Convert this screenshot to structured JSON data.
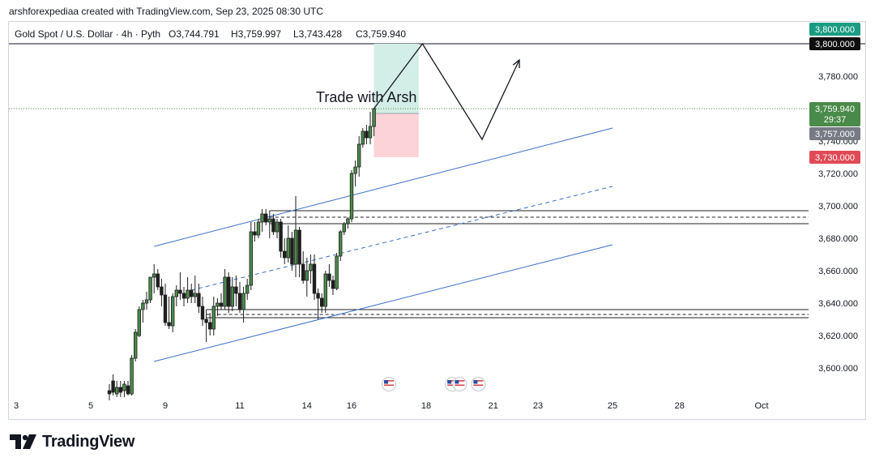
{
  "caption": "arshforexpediaa created with TradingView.com, Sep 23, 2025 08:30 UTC",
  "brand": "TradingView",
  "chart_data": {
    "type": "candlestick",
    "title": "Gold Spot / U.S. Dollar · 4h · Pyth",
    "ohlc": {
      "open": "O3,744.791",
      "high": "H3,759.997",
      "low": "L3,743.428",
      "close": "C3,759.940"
    },
    "annotation": "Trade with Arsh",
    "ylim": [
      3584,
      3818
    ],
    "y_ticks": [
      3600,
      3620,
      3640,
      3660,
      3680,
      3700,
      3720,
      3740,
      3760,
      3780,
      3800
    ],
    "y_tick_labels": [
      "3,600.000",
      "3,620.000",
      "3,640.000",
      "3,660.000",
      "3,680.000",
      "3,700.000",
      "3,720.000",
      "3,740.000",
      "3,760.000",
      "3,780.000",
      "3,800.000"
    ],
    "x_ticks": [
      {
        "label": "3",
        "t": 0
      },
      {
        "label": "5",
        "t": 20
      },
      {
        "label": "9",
        "t": 40
      },
      {
        "label": "11",
        "t": 60
      },
      {
        "label": "14",
        "t": 78
      },
      {
        "label": "16",
        "t": 90
      },
      {
        "label": "18",
        "t": 110
      },
      {
        "label": "21",
        "t": 128
      },
      {
        "label": "23",
        "t": 140
      },
      {
        "label": "25",
        "t": 160
      },
      {
        "label": "28",
        "t": 178
      },
      {
        "label": "Oct",
        "t": 200
      }
    ],
    "candles": [
      [
        25,
        3586,
        3590,
        3580,
        3584
      ],
      [
        26,
        3592,
        3596,
        3583,
        3585
      ],
      [
        27,
        3584,
        3592,
        3582,
        3588
      ],
      [
        28,
        3588,
        3592,
        3582,
        3585
      ],
      [
        29,
        3586,
        3592,
        3582,
        3590
      ],
      [
        30,
        3589,
        3592,
        3583,
        3584
      ],
      [
        31,
        3584,
        3608,
        3583,
        3606
      ],
      [
        32,
        3606,
        3624,
        3604,
        3622
      ],
      [
        33,
        3620,
        3638,
        3619,
        3636
      ],
      [
        34,
        3636,
        3642,
        3628,
        3640
      ],
      [
        35,
        3640,
        3647,
        3636,
        3642
      ],
      [
        36,
        3642,
        3655,
        3640,
        3656
      ],
      [
        37,
        3656,
        3664,
        3646,
        3658
      ],
      [
        38,
        3658,
        3661,
        3648,
        3650
      ],
      [
        39,
        3650,
        3655,
        3638,
        3645
      ],
      [
        40,
        3645,
        3652,
        3626,
        3628
      ],
      [
        41,
        3628,
        3644,
        3624,
        3626
      ],
      [
        42,
        3626,
        3646,
        3622,
        3644
      ],
      [
        43,
        3644,
        3651,
        3638,
        3648
      ],
      [
        44,
        3648,
        3659,
        3642,
        3646
      ],
      [
        45,
        3646,
        3650,
        3638,
        3643
      ],
      [
        46,
        3643,
        3656,
        3640,
        3648
      ],
      [
        47,
        3648,
        3652,
        3640,
        3644
      ],
      [
        48,
        3644,
        3657,
        3640,
        3646
      ],
      [
        49,
        3646,
        3652,
        3634,
        3638
      ],
      [
        50,
        3638,
        3644,
        3626,
        3630
      ],
      [
        51,
        3630,
        3636,
        3616,
        3628
      ],
      [
        52,
        3628,
        3634,
        3620,
        3624
      ],
      [
        53,
        3624,
        3644,
        3620,
        3638
      ],
      [
        54,
        3638,
        3643,
        3632,
        3640
      ],
      [
        55,
        3640,
        3646,
        3636,
        3638
      ],
      [
        56,
        3638,
        3661,
        3636,
        3656
      ],
      [
        57,
        3656,
        3659,
        3634,
        3638
      ],
      [
        58,
        3638,
        3656,
        3635,
        3650
      ],
      [
        59,
        3650,
        3657,
        3638,
        3646
      ],
      [
        60,
        3646,
        3653,
        3634,
        3636
      ],
      [
        61,
        3636,
        3650,
        3628,
        3646
      ],
      [
        62,
        3646,
        3655,
        3642,
        3651
      ],
      [
        63,
        3651,
        3690,
        3648,
        3684
      ],
      [
        64,
        3684,
        3690,
        3678,
        3682
      ],
      [
        65,
        3682,
        3692,
        3680,
        3690
      ],
      [
        66,
        3690,
        3698,
        3684,
        3695
      ],
      [
        67,
        3695,
        3698,
        3688,
        3690
      ],
      [
        68,
        3690,
        3697,
        3680,
        3692
      ],
      [
        69,
        3692,
        3695,
        3682,
        3684
      ],
      [
        70,
        3684,
        3692,
        3680,
        3690
      ],
      [
        71,
        3690,
        3692,
        3668,
        3672
      ],
      [
        72,
        3672,
        3680,
        3664,
        3668
      ],
      [
        73,
        3668,
        3688,
        3665,
        3680
      ],
      [
        74,
        3680,
        3684,
        3660,
        3664
      ],
      [
        75,
        3664,
        3706,
        3656,
        3685
      ],
      [
        76,
        3685,
        3687,
        3656,
        3664
      ],
      [
        77,
        3664,
        3672,
        3652,
        3654
      ],
      [
        78,
        3654,
        3668,
        3644,
        3660
      ],
      [
        79,
        3660,
        3670,
        3652,
        3664
      ],
      [
        80,
        3664,
        3670,
        3642,
        3646
      ],
      [
        81,
        3646,
        3649,
        3630,
        3643
      ],
      [
        82,
        3643,
        3646,
        3634,
        3638
      ],
      [
        83,
        3638,
        3660,
        3634,
        3658
      ],
      [
        84,
        3658,
        3664,
        3650,
        3654
      ],
      [
        85,
        3654,
        3657,
        3645,
        3649
      ],
      [
        86,
        3649,
        3671,
        3648,
        3669
      ],
      [
        87,
        3669,
        3685,
        3666,
        3684
      ],
      [
        88,
        3684,
        3690,
        3682,
        3689
      ],
      [
        89,
        3689,
        3693,
        3686,
        3692
      ],
      [
        90,
        3692,
        3722,
        3690,
        3720
      ],
      [
        91,
        3720,
        3728,
        3712,
        3724
      ],
      [
        92,
        3724,
        3743,
        3718,
        3738
      ],
      [
        93,
        3738,
        3748,
        3736,
        3746
      ],
      [
        94,
        3746,
        3750,
        3738,
        3742
      ],
      [
        95,
        3742,
        3758,
        3738,
        3749
      ],
      [
        96,
        3749,
        3760,
        3743,
        3760
      ]
    ],
    "channel": {
      "upper": [
        [
          37,
          3675
        ],
        [
          160,
          3748
        ]
      ],
      "middle": [
        [
          47,
          3648
        ],
        [
          160,
          3712
        ]
      ],
      "lower": [
        [
          37,
          3604
        ],
        [
          160,
          3676
        ]
      ]
    },
    "zones": [
      {
        "range": [
          3689,
          3697
        ],
        "mid": 3693,
        "from": 68
      },
      {
        "range": [
          3631,
          3636
        ],
        "mid": 3633,
        "from": 51
      }
    ],
    "position": {
      "from": 96,
      "to": 108,
      "entry": 3757,
      "target": 3800,
      "stop": 3730
    },
    "projection": [
      [
        96,
        3760
      ],
      [
        109,
        3800
      ],
      [
        125,
        3741
      ],
      [
        135,
        3790
      ]
    ],
    "level_line": 3800,
    "current_price": 3759.94,
    "price_labels": {
      "target": "3,800.000",
      "level": "3,800.000",
      "last": "3,759.940",
      "countdown": "29:37",
      "entry": "3,757.000",
      "stop": "3,730.000"
    },
    "event_markers": [
      100,
      117,
      119,
      124
    ],
    "colors": {
      "up": "#4a8a4a",
      "down": "#1f1f1f",
      "line": "#3a6fc9",
      "target": "#d3eee6",
      "stop": "#fcd3d8"
    }
  }
}
